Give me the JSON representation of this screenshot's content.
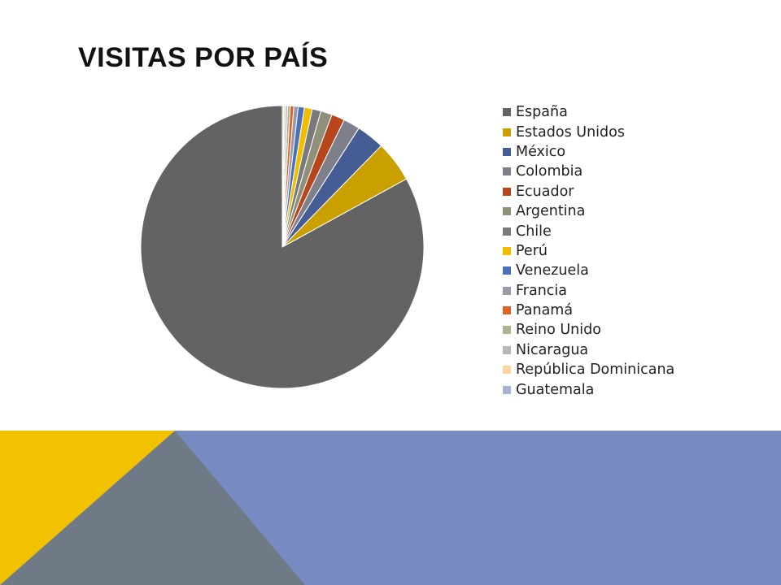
{
  "slide": {
    "title": "VISITAS POR PAÍS"
  },
  "chart_data": {
    "type": "pie",
    "title": "",
    "legend_position": "right",
    "categories": [
      "España",
      "Estados Unidos",
      "México",
      "Colombia",
      "Ecuador",
      "Argentina",
      "Chile",
      "Perú",
      "Venezuela",
      "Francia",
      "Panamá",
      "Reino Unido",
      "Nicaragua",
      "República Dominicana",
      "Guatemala"
    ],
    "values": [
      83.0,
      4.7,
      3.2,
      1.9,
      1.5,
      1.3,
      1.0,
      0.9,
      0.7,
      0.5,
      0.4,
      0.3,
      0.25,
      0.2,
      0.15
    ],
    "colors": [
      "#636363",
      "#c9a000",
      "#455c95",
      "#7f7f8c",
      "#b8461d",
      "#8f8f7a",
      "#7a7a7a",
      "#f0be00",
      "#4a70b8",
      "#9999a8",
      "#dd6225",
      "#b1b191",
      "#b8b8b8",
      "#f6d5a0",
      "#a7b3cf"
    ]
  },
  "footer_colors": {
    "yellow": "#f2c200",
    "slate": "#6f7a86",
    "blue": "#778bc2"
  }
}
